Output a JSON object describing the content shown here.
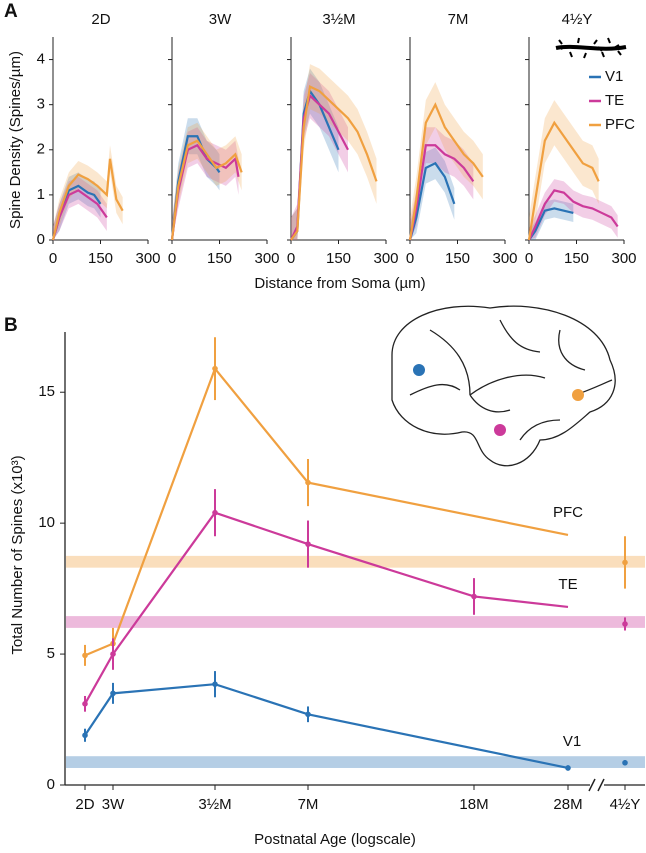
{
  "chart_data": [
    {
      "type": "panels",
      "label": "A",
      "xlabel": "Distance from Soma (µm)",
      "ylabel": "Spine Density (Spines/µm)",
      "xlim": [
        0,
        300
      ],
      "xticks": [
        0,
        150,
        300
      ],
      "ylim": [
        0,
        4.5
      ],
      "yticks": [
        0,
        1,
        2,
        3,
        4
      ],
      "legend": "upper right",
      "series": [
        {
          "name": "V1",
          "color": "#2a73b5"
        },
        {
          "name": "TE",
          "color": "#cc3a9a"
        },
        {
          "name": "PFC",
          "color": "#f0a040"
        }
      ],
      "panels": [
        {
          "title": "2D",
          "series": [
            {
              "x": [
                0,
                20,
                50,
                80,
                110,
                130,
                150
              ],
              "values": [
                0,
                0.5,
                1.1,
                1.2,
                1.05,
                1.0,
                0.8
              ],
              "error": 0.3
            },
            {
              "x": [
                0,
                20,
                50,
                80,
                110,
                140,
                170
              ],
              "values": [
                0,
                0.5,
                1.0,
                1.1,
                0.95,
                0.8,
                0.5
              ],
              "error": 0.3
            },
            {
              "x": [
                0,
                20,
                50,
                80,
                110,
                140,
                170,
                180,
                200,
                220
              ],
              "values": [
                0,
                0.6,
                1.2,
                1.45,
                1.35,
                1.2,
                1.0,
                1.8,
                0.9,
                0.65
              ],
              "error": 0.3
            }
          ]
        },
        {
          "title": "3W",
          "series": [
            {
              "x": [
                0,
                20,
                50,
                80,
                110,
                140,
                150
              ],
              "values": [
                0,
                1.3,
                2.3,
                2.3,
                1.8,
                1.6,
                1.5
              ],
              "error": 0.4
            },
            {
              "x": [
                0,
                20,
                50,
                80,
                110,
                140,
                170,
                200,
                210
              ],
              "values": [
                0,
                1.1,
                2.0,
                2.1,
                1.8,
                1.7,
                1.6,
                1.8,
                1.4
              ],
              "error": 0.4
            },
            {
              "x": [
                0,
                20,
                50,
                80,
                110,
                140,
                170,
                200,
                220
              ],
              "values": [
                0,
                1.2,
                2.1,
                2.2,
                1.9,
                1.6,
                1.7,
                1.9,
                1.5
              ],
              "error": 0.4
            }
          ]
        },
        {
          "title": "3½M",
          "series": [
            {
              "x": [
                0,
                20,
                40,
                60,
                90,
                120,
                150
              ],
              "values": [
                0,
                0.2,
                2.8,
                3.3,
                3.0,
                2.5,
                2.0
              ],
              "error": 0.5
            },
            {
              "x": [
                0,
                20,
                40,
                60,
                90,
                120,
                150,
                180
              ],
              "values": [
                0,
                0.3,
                2.7,
                3.2,
                3.0,
                2.8,
                2.4,
                2.0
              ],
              "error": 0.5
            },
            {
              "x": [
                0,
                20,
                40,
                60,
                90,
                120,
                150,
                180,
                210,
                240,
                270
              ],
              "values": [
                0,
                0.2,
                2.5,
                3.4,
                3.3,
                3.1,
                2.9,
                2.7,
                2.4,
                1.9,
                1.3
              ],
              "error": 0.5
            }
          ]
        },
        {
          "title": "7M",
          "series": [
            {
              "x": [
                0,
                20,
                50,
                80,
                110,
                140
              ],
              "values": [
                0,
                0.5,
                1.6,
                1.7,
                1.4,
                0.8
              ],
              "error": 0.35
            },
            {
              "x": [
                0,
                20,
                50,
                80,
                110,
                140,
                170,
                200
              ],
              "values": [
                0,
                0.7,
                2.1,
                2.1,
                1.9,
                1.8,
                1.6,
                1.3
              ],
              "error": 0.4
            },
            {
              "x": [
                0,
                20,
                50,
                80,
                110,
                140,
                170,
                200,
                230
              ],
              "values": [
                0,
                0.9,
                2.6,
                3.0,
                2.5,
                2.2,
                1.9,
                1.7,
                1.4
              ],
              "error": 0.5
            }
          ]
        },
        {
          "title": "4½Y",
          "series": [
            {
              "x": [
                0,
                20,
                50,
                80,
                110,
                140
              ],
              "values": [
                0,
                0.2,
                0.65,
                0.7,
                0.65,
                0.6
              ],
              "error": 0.2
            },
            {
              "x": [
                0,
                20,
                50,
                80,
                110,
                140,
                170,
                200,
                230,
                260,
                280
              ],
              "values": [
                0,
                0.3,
                0.8,
                1.1,
                1.05,
                0.85,
                0.75,
                0.7,
                0.6,
                0.5,
                0.3
              ],
              "error": 0.25
            },
            {
              "x": [
                0,
                20,
                50,
                80,
                110,
                140,
                170,
                200,
                220
              ],
              "values": [
                0,
                0.9,
                2.2,
                2.6,
                2.3,
                2.0,
                1.7,
                1.6,
                1.3
              ],
              "error": 0.5
            }
          ]
        }
      ]
    },
    {
      "type": "line",
      "label": "B",
      "xlabel": "Postnatal Age (logscale)",
      "ylabel": "Total Number of Spines (x10³)",
      "ylim": [
        0,
        17.3
      ],
      "yticks": [
        0,
        5,
        10,
        15
      ],
      "categories": [
        "2D",
        "3W",
        "3½M",
        "7M",
        "18M",
        "28M",
        "4½Y"
      ],
      "series": [
        {
          "name": "PFC",
          "color": "#f0a040",
          "values": [
            4.95,
            5.4,
            15.9,
            11.55,
            null,
            9.55,
            8.5
          ],
          "errors": [
            0.4,
            0.6,
            1.2,
            0.9,
            null,
            null,
            1.0
          ],
          "band": [
            8.3,
            8.75
          ]
        },
        {
          "name": "TE",
          "color": "#cc3a9a",
          "values": [
            3.1,
            5.0,
            10.4,
            9.2,
            7.2,
            6.8,
            6.15
          ],
          "errors": [
            0.3,
            0.6,
            0.9,
            0.9,
            0.7,
            null,
            0.25
          ],
          "band": [
            6.0,
            6.45
          ]
        },
        {
          "name": "V1",
          "color": "#2a73b5",
          "values": [
            1.9,
            3.5,
            3.85,
            2.7,
            null,
            0.65,
            0.85
          ],
          "errors": [
            0.25,
            0.4,
            0.5,
            0.3,
            null,
            0.1,
            0.1
          ],
          "band": [
            0.65,
            1.1
          ]
        }
      ]
    }
  ]
}
